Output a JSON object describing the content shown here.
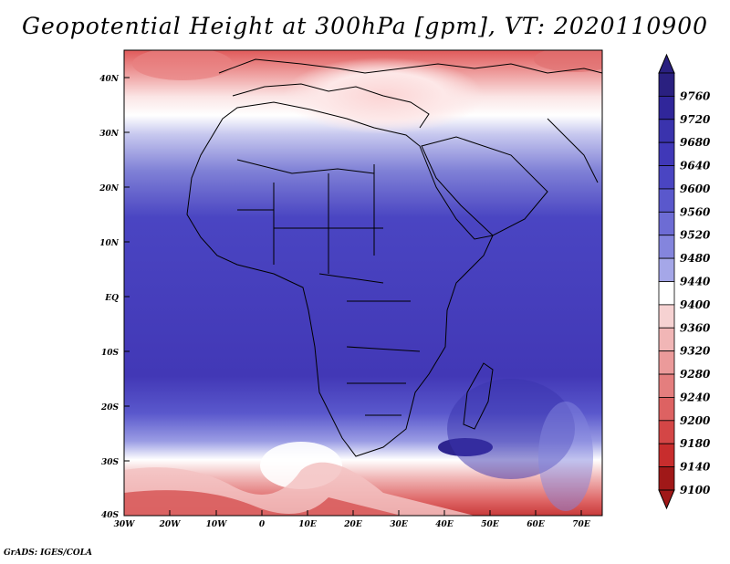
{
  "title": "Geopotential Height at 300hPa [gpm], VT: 2020110900",
  "footer": "GrADS: IGES/COLA",
  "map": {
    "lon_ticks": [
      "30W",
      "20W",
      "10W",
      "0",
      "10E",
      "20E",
      "30E",
      "40E",
      "50E",
      "60E",
      "70E"
    ],
    "lat_ticks": [
      "40N",
      "30N",
      "20N",
      "10N",
      "EQ",
      "10S",
      "20S",
      "30S",
      "40S"
    ]
  },
  "colorbar": {
    "labels": [
      "9760",
      "9720",
      "9680",
      "9640",
      "9600",
      "9560",
      "9520",
      "9480",
      "9440",
      "9400",
      "9360",
      "9320",
      "9280",
      "9240",
      "9200",
      "9180",
      "9140",
      "9100"
    ],
    "colors": [
      "#2a2080",
      "#30269a",
      "#3a33ad",
      "#4038b8",
      "#4a45c2",
      "#5a58cc",
      "#6d6cd4",
      "#8485dd",
      "#a5a7e8",
      "#ffffff",
      "#f6d2d2",
      "#f1b6b6",
      "#eb9a9a",
      "#e47e7e",
      "#dd6262",
      "#d44646",
      "#c82d2d",
      "#a01818"
    ]
  }
}
